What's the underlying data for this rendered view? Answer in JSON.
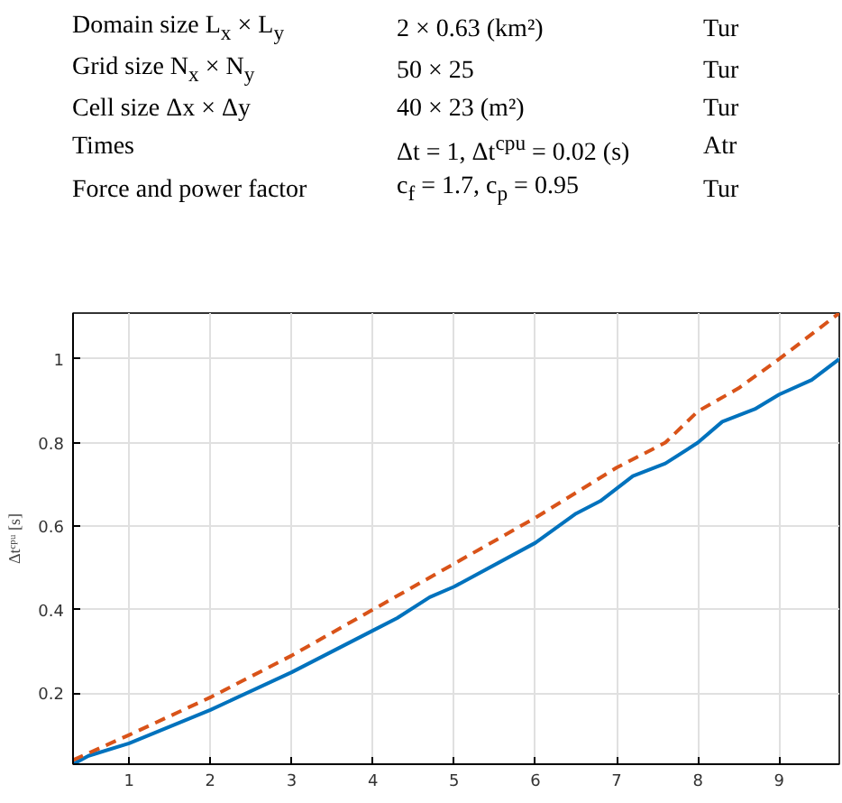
{
  "chart_data": {
    "type": "line",
    "ylabel": "Δtᶜᵖᵘ [s]",
    "annotations": [
      "Domain size L$_{x}$ × L$_{y}$",
      "2 × 0.63 (km²)",
      "Tur",
      "Grid size N$_{x}$ × N$_{y}$",
      "50 × 25",
      "Tur",
      "Cell size Δx × Δy",
      "40 × 23 (m²)",
      "Tur",
      "Times",
      "Δt = 1, Δt$^{cpu}$ = 0.02 (s)",
      "Atr",
      "Force and power factor",
      "c$_{f}$ = 1.7, c$_{p}$ = 0.95",
      "Tur"
    ],
    "xlim": [
      0.31,
      9.74
    ],
    "ylim": [
      0.03,
      1.11
    ],
    "xticks": [
      1,
      2,
      3,
      4,
      5,
      6,
      7,
      8,
      9
    ],
    "yticks": [
      0.2,
      0.4,
      0.6,
      0.8,
      1
    ],
    "grid": true,
    "series": [
      {
        "color": "#0072bd",
        "line_style": "solid",
        "x": [
          0.31,
          0.5,
          1,
          2,
          3,
          4,
          4.3,
          4.7,
          5,
          6,
          6.5,
          6.8,
          7.2,
          7.6,
          8,
          8.3,
          8.7,
          9,
          9.4,
          9.74
        ],
        "values": [
          0.03,
          0.05,
          0.08,
          0.16,
          0.25,
          0.35,
          0.38,
          0.43,
          0.455,
          0.56,
          0.63,
          0.66,
          0.72,
          0.75,
          0.8,
          0.85,
          0.88,
          0.915,
          0.95,
          1.0
        ]
      },
      {
        "color": "#d95319",
        "line_style": "dashed",
        "x": [
          0.31,
          1,
          2,
          3,
          4,
          5,
          6,
          7,
          7.6,
          8,
          8.5,
          9,
          9.74
        ],
        "values": [
          0.04,
          0.1,
          0.19,
          0.29,
          0.4,
          0.51,
          0.62,
          0.74,
          0.8,
          0.875,
          0.93,
          1.0,
          1.11
        ]
      }
    ]
  }
}
